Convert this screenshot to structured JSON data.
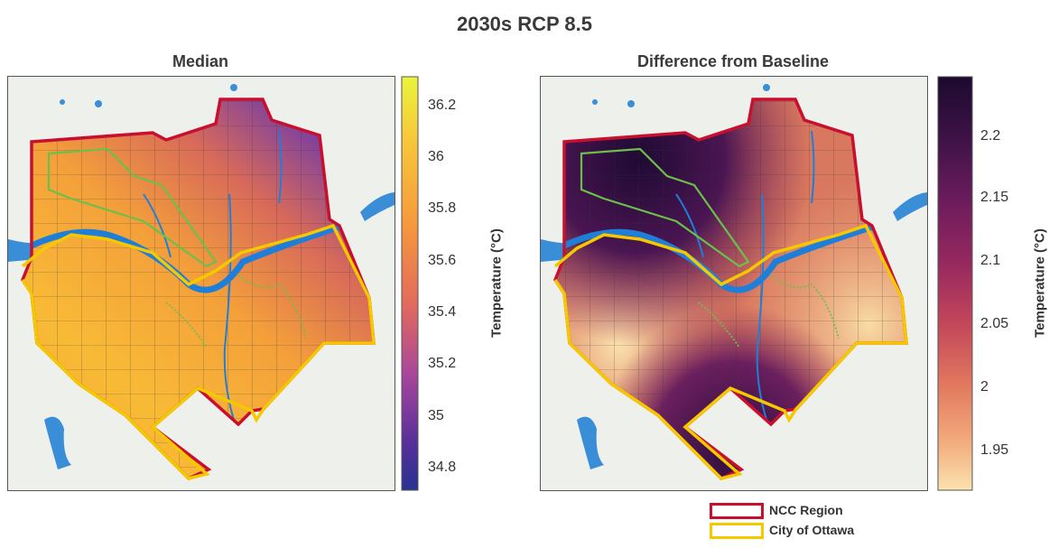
{
  "title": "2030s RCP 8.5",
  "left_panel": {
    "title": "Median",
    "colorbar": {
      "label": "Temperature (°C)",
      "ticks": [
        "36.2",
        "36",
        "35.8",
        "35.6",
        "35.4",
        "35.2",
        "35",
        "34.8"
      ],
      "range": [
        34.75,
        36.35
      ]
    }
  },
  "right_panel": {
    "title": "Difference from Baseline",
    "colorbar": {
      "label": "Temperature (°C)",
      "ticks": [
        "2.2",
        "2.15",
        "2.1",
        "2.05",
        "2",
        "1.95"
      ],
      "range": [
        1.92,
        2.245
      ]
    }
  },
  "legend": {
    "items": [
      {
        "label": "NCC Region",
        "color": "#c8102e"
      },
      {
        "label": "City of Ottawa",
        "color": "#f5c800"
      }
    ]
  }
}
